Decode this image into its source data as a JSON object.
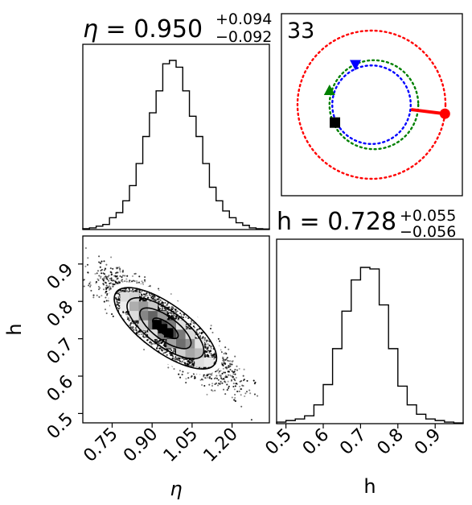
{
  "chart_data": [
    {
      "type": "histogram",
      "panel": "eta-marginal",
      "title": {
        "var": "η",
        "eq": " = 0.950",
        "sup": "+0.094",
        "sub": "−0.092"
      },
      "x": [
        0.64,
        0.665,
        0.69,
        0.715,
        0.74,
        0.765,
        0.79,
        0.815,
        0.84,
        0.865,
        0.89,
        0.915,
        0.94,
        0.965,
        0.99,
        1.015,
        1.04,
        1.065,
        1.09,
        1.115,
        1.14,
        1.165,
        1.19,
        1.215,
        1.24,
        1.265,
        1.29,
        1.315,
        1.34
      ],
      "values": [
        0.005,
        0.01,
        0.02,
        0.03,
        0.07,
        0.1,
        0.17,
        0.26,
        0.39,
        0.55,
        0.69,
        0.82,
        0.98,
        1.0,
        0.96,
        0.82,
        0.67,
        0.55,
        0.39,
        0.25,
        0.17,
        0.11,
        0.07,
        0.04,
        0.025,
        0.01,
        0.005,
        0.003
      ],
      "xlim": [
        0.64,
        1.34
      ]
    },
    {
      "type": "histogram",
      "panel": "h-marginal",
      "title": {
        "var": "h",
        "eq": " = 0.728",
        "sup": "+0.055",
        "sub": "−0.056"
      },
      "xlabel": "h",
      "xticks": [
        "0.5",
        "0.6",
        "0.7",
        "0.8",
        "0.9"
      ],
      "x": [
        0.475,
        0.5,
        0.525,
        0.55,
        0.575,
        0.6,
        0.625,
        0.65,
        0.675,
        0.7,
        0.725,
        0.75,
        0.775,
        0.8,
        0.825,
        0.85,
        0.875,
        0.9,
        0.925,
        0.95,
        0.975
      ],
      "values": [
        0.01,
        0.02,
        0.03,
        0.05,
        0.12,
        0.25,
        0.48,
        0.72,
        0.92,
        1.0,
        0.99,
        0.76,
        0.48,
        0.24,
        0.12,
        0.06,
        0.03,
        0.02,
        0.01,
        0.005
      ],
      "xlim": [
        0.475,
        0.975
      ]
    },
    {
      "type": "heatmap",
      "panel": "joint-eta-h",
      "xlabel": "η",
      "ylabel": "h",
      "xticks": [
        "0.75",
        "0.90",
        "1.05",
        "1.20"
      ],
      "yticks": [
        "0.5",
        "0.6",
        "0.7",
        "0.8",
        "0.9"
      ],
      "xlim": [
        0.64,
        1.34
      ],
      "ylim": [
        0.475,
        0.975
      ],
      "mean": [
        0.95,
        0.728
      ],
      "slope": -0.52,
      "peak_cells": [
        {
          "x": 0.918,
          "y": 0.738
        },
        {
          "x": 0.962,
          "y": 0.716
        },
        {
          "x": 0.94,
          "y": 0.727
        }
      ]
    },
    {
      "type": "scatter",
      "panel": "orbit",
      "label": "33",
      "circles": [
        {
          "name": "red",
          "color": "#ff0000",
          "r": 1.0
        },
        {
          "name": "green",
          "color": "#008000",
          "r": 0.6
        },
        {
          "name": "blue",
          "color": "#0000ff",
          "r": 0.53
        }
      ],
      "markers": [
        {
          "name": "red-dot",
          "color": "#ff0000",
          "shape": "circle",
          "angle": -7,
          "r": 1.0
        },
        {
          "name": "blue-triangle",
          "color": "#0000ff",
          "shape": "triangle-down",
          "angle": 112,
          "r": 0.58
        },
        {
          "name": "green-triangle",
          "color": "#008000",
          "shape": "triangle-up",
          "angle": 161,
          "r": 0.6
        },
        {
          "name": "black-square",
          "color": "#000000",
          "shape": "square",
          "angle": 206,
          "r": 0.55
        }
      ]
    }
  ]
}
